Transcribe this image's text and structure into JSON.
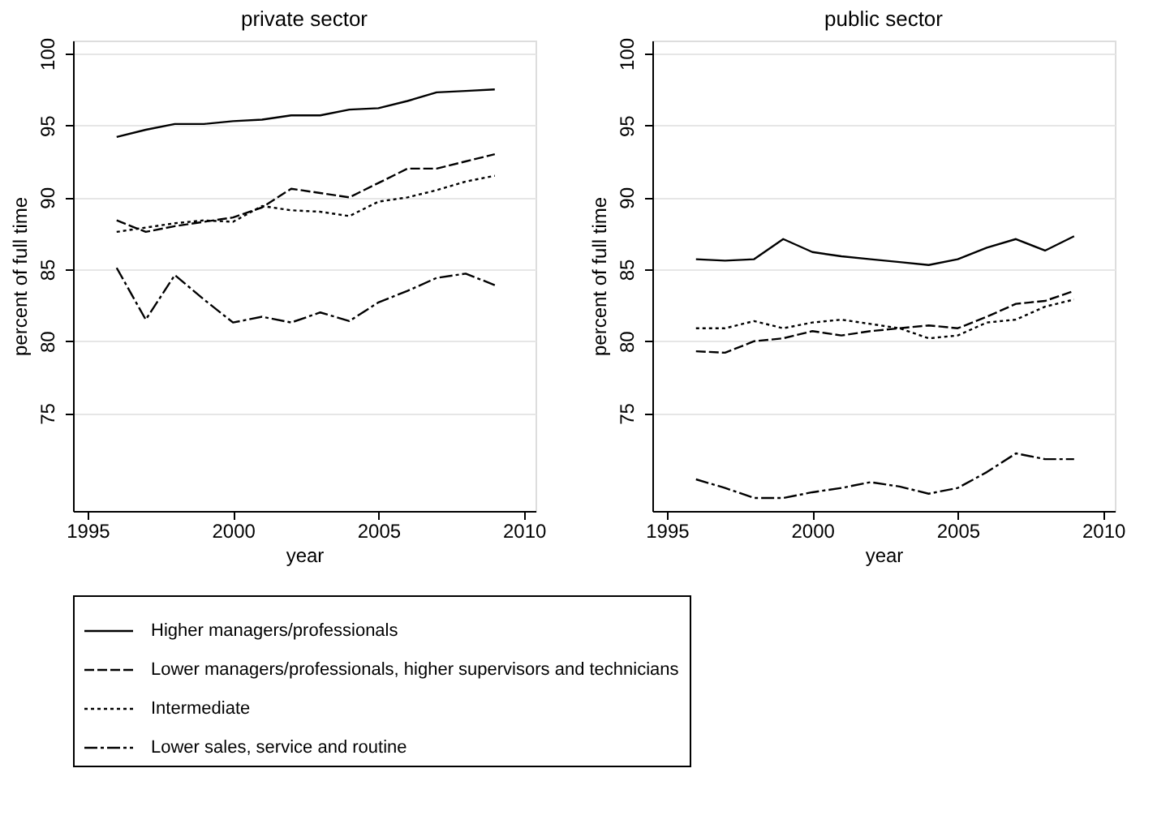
{
  "chart_data": [
    {
      "type": "line",
      "title": "private sector",
      "xlabel": "year",
      "ylabel": "percent of full time",
      "x": [
        1996,
        1997,
        1998,
        1999,
        2000,
        2001,
        2002,
        2003,
        2004,
        2005,
        2006,
        2007,
        2008,
        2009
      ],
      "xlim": [
        1994.5,
        2010.4
      ],
      "xticks": [
        1995,
        2000,
        2005,
        2010
      ],
      "ylim": [
        68.2,
        100.9
      ],
      "yticks": [
        75,
        80,
        85,
        90,
        95,
        100
      ],
      "grid": "y",
      "legend": "bottom",
      "marker": "none",
      "series": [
        {
          "name": "Higher managers/professionals",
          "color": "#000000",
          "line_style": "solid",
          "values": [
            94.2,
            94.7,
            95.1,
            95.1,
            95.3,
            95.4,
            95.7,
            95.7,
            96.1,
            96.2,
            96.7,
            97.3,
            97.4,
            97.5
          ]
        },
        {
          "name": "Lower managers/professionals, higher supervisors and technicians",
          "color": "#000000",
          "line_style": "dashed",
          "values": [
            88.4,
            87.6,
            88.0,
            88.3,
            88.6,
            89.3,
            90.6,
            90.3,
            90.0,
            91.0,
            92.0,
            92.0,
            92.5,
            93.0
          ]
        },
        {
          "name": "Intermediate",
          "color": "#000000",
          "line_style": "dotted",
          "values": [
            87.6,
            87.9,
            88.2,
            88.4,
            88.3,
            89.4,
            89.1,
            89.0,
            88.7,
            89.7,
            90.0,
            90.5,
            91.1,
            91.5
          ]
        },
        {
          "name": "Lower sales, service and routine",
          "color": "#000000",
          "line_style": "dashdot",
          "values": [
            85.1,
            81.5,
            84.6,
            82.9,
            81.3,
            81.7,
            81.3,
            82.0,
            81.4,
            82.7,
            83.5,
            84.4,
            84.7,
            83.9
          ]
        }
      ]
    },
    {
      "type": "line",
      "title": "public sector",
      "xlabel": "year",
      "ylabel": "percent of full time",
      "x": [
        1996,
        1997,
        1998,
        1999,
        2000,
        2001,
        2002,
        2003,
        2004,
        2005,
        2006,
        2007,
        2008,
        2009
      ],
      "xlim": [
        1994.5,
        2010.4
      ],
      "xticks": [
        1995,
        2000,
        2005,
        2010
      ],
      "ylim": [
        68.2,
        100.9
      ],
      "yticks": [
        75,
        80,
        85,
        90,
        95,
        100
      ],
      "grid": "y",
      "legend": "bottom",
      "marker": "none",
      "series": [
        {
          "name": "Higher managers/professionals",
          "color": "#000000",
          "line_style": "solid",
          "values": [
            85.7,
            85.6,
            85.7,
            87.1,
            86.2,
            85.9,
            85.7,
            85.5,
            85.3,
            85.7,
            86.5,
            87.1,
            86.3,
            87.3
          ]
        },
        {
          "name": "Lower managers/professionals, higher supervisors and technicians",
          "color": "#000000",
          "line_style": "dashed",
          "values": [
            79.3,
            79.2,
            80.0,
            80.2,
            80.7,
            80.4,
            80.7,
            80.9,
            81.1,
            80.9,
            81.7,
            82.6,
            82.8,
            83.5
          ]
        },
        {
          "name": "Intermediate",
          "color": "#000000",
          "line_style": "dotted",
          "values": [
            80.9,
            80.9,
            81.4,
            80.9,
            81.3,
            81.5,
            81.2,
            80.9,
            80.2,
            80.4,
            81.3,
            81.5,
            82.4,
            82.9
          ]
        },
        {
          "name": "Lower sales, service and routine",
          "color": "#000000",
          "line_style": "dashdot",
          "values": [
            70.4,
            69.8,
            69.1,
            69.1,
            69.5,
            69.8,
            70.2,
            69.9,
            69.4,
            69.8,
            70.9,
            72.2,
            71.8,
            71.8
          ]
        }
      ]
    }
  ]
}
